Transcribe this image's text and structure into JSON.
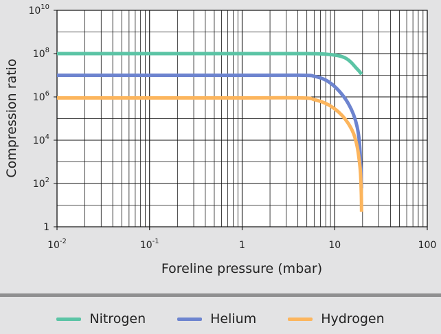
{
  "chart_data": {
    "type": "line",
    "xscale": "log",
    "yscale": "log",
    "xlim": [
      0.01,
      100
    ],
    "ylim": [
      1,
      10000000000
    ],
    "xlabel": "Foreline pressure (mbar)",
    "ylabel": "Compression ratio",
    "x_ticks": [
      {
        "value": 0.01,
        "base": "10",
        "exp": "-2"
      },
      {
        "value": 0.1,
        "base": "10",
        "exp": "-1"
      },
      {
        "value": 1,
        "base": "1",
        "exp": ""
      },
      {
        "value": 10,
        "base": "10",
        "exp": ""
      },
      {
        "value": 100,
        "base": "100",
        "exp": ""
      }
    ],
    "y_ticks": [
      {
        "value": 1,
        "base": "1",
        "exp": ""
      },
      {
        "value": 100,
        "base": "10",
        "exp": "2"
      },
      {
        "value": 10000,
        "base": "10",
        "exp": "4"
      },
      {
        "value": 1000000,
        "base": "10",
        "exp": "6"
      },
      {
        "value": 100000000,
        "base": "10",
        "exp": "8"
      },
      {
        "value": 10000000000,
        "base": "10",
        "exp": "10"
      }
    ],
    "grid": true,
    "legend_position": "bottom",
    "series": [
      {
        "name": "Nitrogen",
        "color": "#5bc4a5",
        "points": [
          [
            0.01,
            100000000
          ],
          [
            1,
            100000000
          ],
          [
            5,
            100000000
          ],
          [
            7,
            97000000
          ],
          [
            9,
            90000000
          ],
          [
            11,
            80000000
          ],
          [
            13,
            63000000
          ],
          [
            15,
            40000000
          ],
          [
            17,
            22000000
          ],
          [
            18,
            17000000
          ],
          [
            19,
            13000000
          ],
          [
            19.5,
            11000000
          ]
        ]
      },
      {
        "name": "Helium",
        "color": "#6d84cf",
        "points": [
          [
            0.01,
            10000000
          ],
          [
            1,
            10000000
          ],
          [
            4.5,
            10000000
          ],
          [
            6,
            9000000
          ],
          [
            8,
            6000000
          ],
          [
            10,
            3000000
          ],
          [
            12,
            1300000
          ],
          [
            14,
            500000
          ],
          [
            16,
            150000
          ],
          [
            17.5,
            40000
          ],
          [
            18.5,
            8000
          ],
          [
            19.2,
            500
          ],
          [
            19.5,
            60
          ]
        ]
      },
      {
        "name": "Hydrogen",
        "color": "#fcb55d",
        "points": [
          [
            0.01,
            900000
          ],
          [
            1,
            900000
          ],
          [
            4.5,
            900000
          ],
          [
            6,
            750000
          ],
          [
            8,
            500000
          ],
          [
            10,
            280000
          ],
          [
            12,
            140000
          ],
          [
            14,
            60000
          ],
          [
            16,
            20000
          ],
          [
            17.5,
            5000
          ],
          [
            18.5,
            1000
          ],
          [
            19,
            300
          ],
          [
            19.4,
            30
          ],
          [
            19.5,
            5
          ]
        ]
      }
    ]
  },
  "legend": [
    {
      "label": "Nitrogen",
      "color": "#5bc4a5"
    },
    {
      "label": "Helium",
      "color": "#6d84cf"
    },
    {
      "label": "Hydrogen",
      "color": "#fcb55d"
    }
  ]
}
